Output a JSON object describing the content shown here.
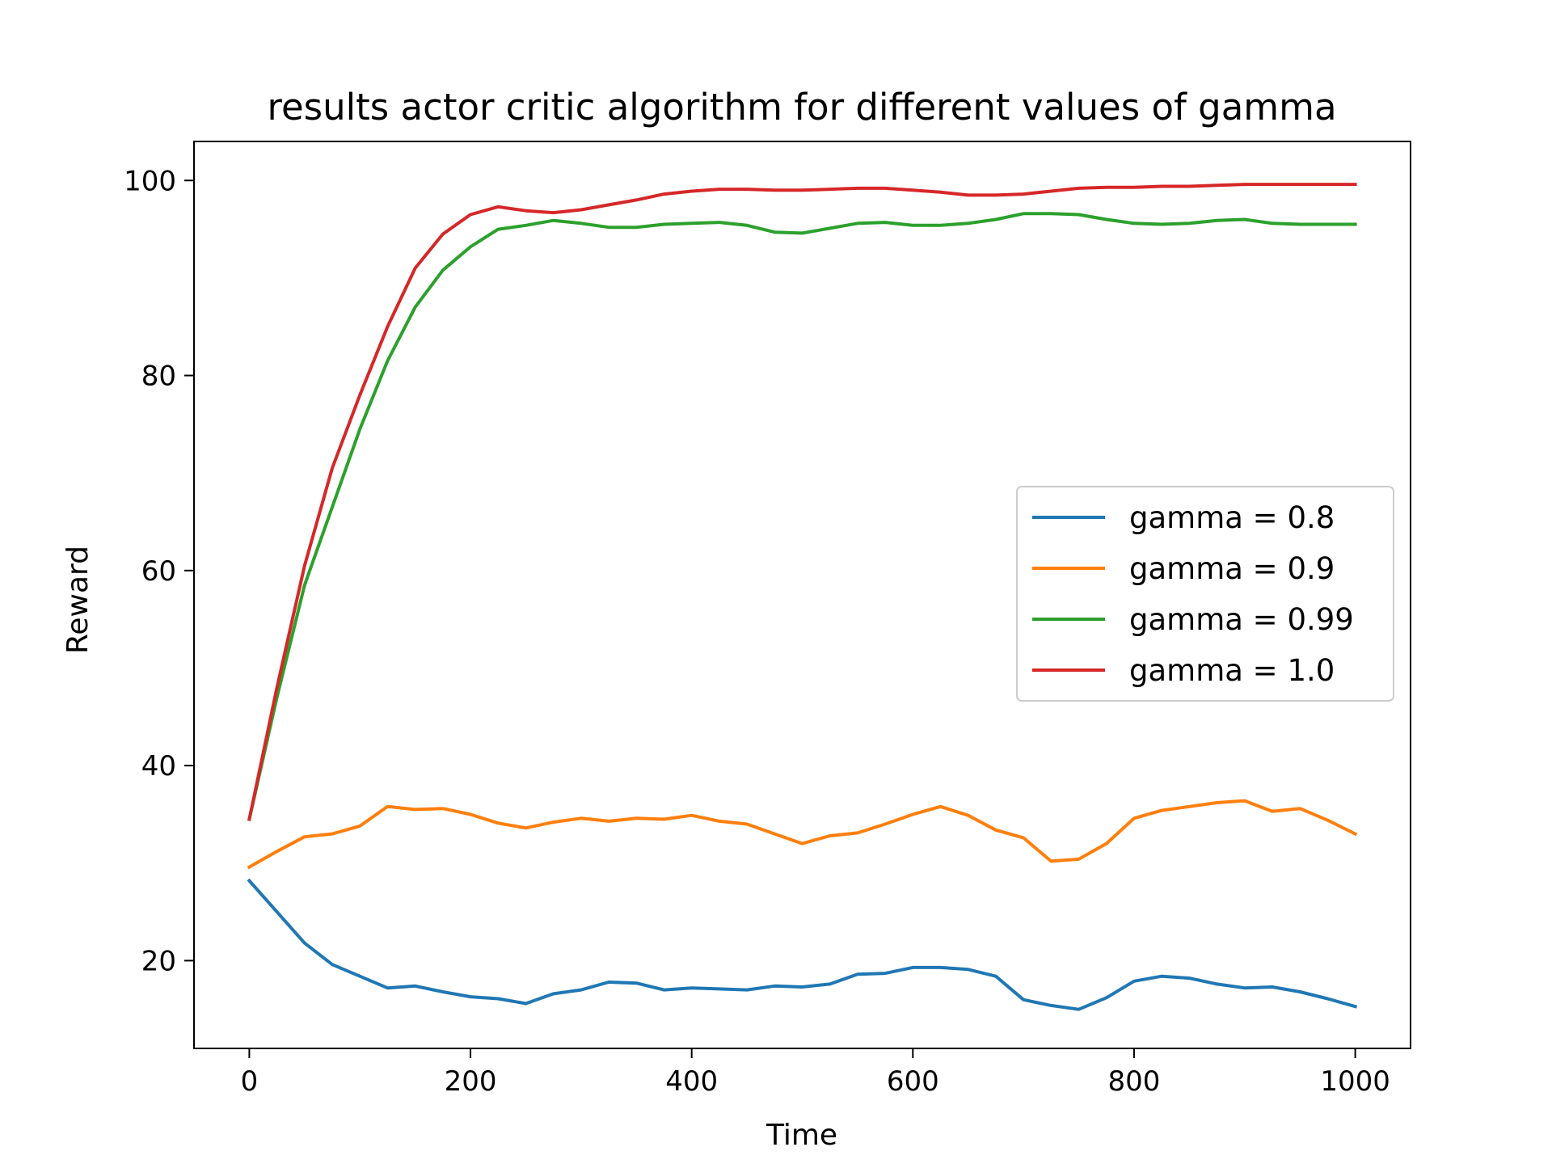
{
  "chart_data": {
    "type": "line",
    "title": "results actor critic algorithm for different values of gamma",
    "xlabel": "Time",
    "ylabel": "Reward",
    "xlim": [
      -50,
      1050
    ],
    "ylim": [
      11,
      104
    ],
    "xticks": [
      0,
      200,
      400,
      600,
      800,
      1000
    ],
    "yticks": [
      20,
      40,
      60,
      80,
      100
    ],
    "grid": false,
    "legend_position": "center-right",
    "x": [
      0,
      25,
      50,
      75,
      100,
      125,
      150,
      175,
      200,
      225,
      250,
      275,
      300,
      325,
      350,
      375,
      400,
      425,
      450,
      475,
      500,
      525,
      550,
      575,
      600,
      625,
      650,
      675,
      700,
      725,
      750,
      775,
      800,
      825,
      850,
      875,
      900,
      925,
      950,
      975,
      1000
    ],
    "series": [
      {
        "name": "gamma = 0.8",
        "color": "#1f77b4",
        "values": [
          28.2,
          25.0,
          21.8,
          19.6,
          18.4,
          17.2,
          17.4,
          16.8,
          16.3,
          16.1,
          15.6,
          16.6,
          17.0,
          17.8,
          17.7,
          17.0,
          17.2,
          17.1,
          17.0,
          17.4,
          17.3,
          17.6,
          18.6,
          18.7,
          19.3,
          19.3,
          19.1,
          18.4,
          16.0,
          15.4,
          15.0,
          16.2,
          17.9,
          18.4,
          18.2,
          17.6,
          17.2,
          17.3,
          16.8,
          16.1,
          15.3
        ]
      },
      {
        "name": "gamma = 0.9",
        "color": "#ff7f0e",
        "values": [
          29.6,
          31.2,
          32.7,
          33.0,
          33.8,
          35.8,
          35.5,
          35.6,
          35.0,
          34.1,
          33.6,
          34.2,
          34.6,
          34.3,
          34.6,
          34.5,
          34.9,
          34.3,
          34.0,
          33.0,
          32.0,
          32.8,
          33.1,
          34.0,
          35.0,
          35.8,
          34.9,
          33.4,
          32.6,
          30.2,
          30.4,
          32.0,
          34.6,
          35.4,
          35.8,
          36.2,
          36.4,
          35.3,
          35.6,
          34.4,
          33.0
        ]
      },
      {
        "name": "gamma = 0.99",
        "color": "#2ca02c",
        "values": [
          34.5,
          47.0,
          58.5,
          66.5,
          74.5,
          81.5,
          87.0,
          90.8,
          93.2,
          95.0,
          95.4,
          95.9,
          95.6,
          95.2,
          95.2,
          95.5,
          95.6,
          95.7,
          95.4,
          94.7,
          94.6,
          95.1,
          95.6,
          95.7,
          95.4,
          95.4,
          95.6,
          96.0,
          96.6,
          96.6,
          96.5,
          96.0,
          95.6,
          95.5,
          95.6,
          95.9,
          96.0,
          95.6,
          95.5,
          95.5,
          95.5
        ]
      },
      {
        "name": "gamma = 1.0",
        "color": "#d62728",
        "values": [
          34.5,
          48.0,
          60.5,
          70.5,
          78.0,
          85.0,
          91.0,
          94.5,
          96.5,
          97.3,
          96.9,
          96.7,
          97.0,
          97.5,
          98.0,
          98.6,
          98.9,
          99.1,
          99.1,
          99.0,
          99.0,
          99.1,
          99.2,
          99.2,
          99.0,
          98.8,
          98.5,
          98.5,
          98.6,
          98.9,
          99.2,
          99.3,
          99.3,
          99.4,
          99.4,
          99.5,
          99.6,
          99.6,
          99.6,
          99.6,
          99.6
        ]
      }
    ]
  }
}
